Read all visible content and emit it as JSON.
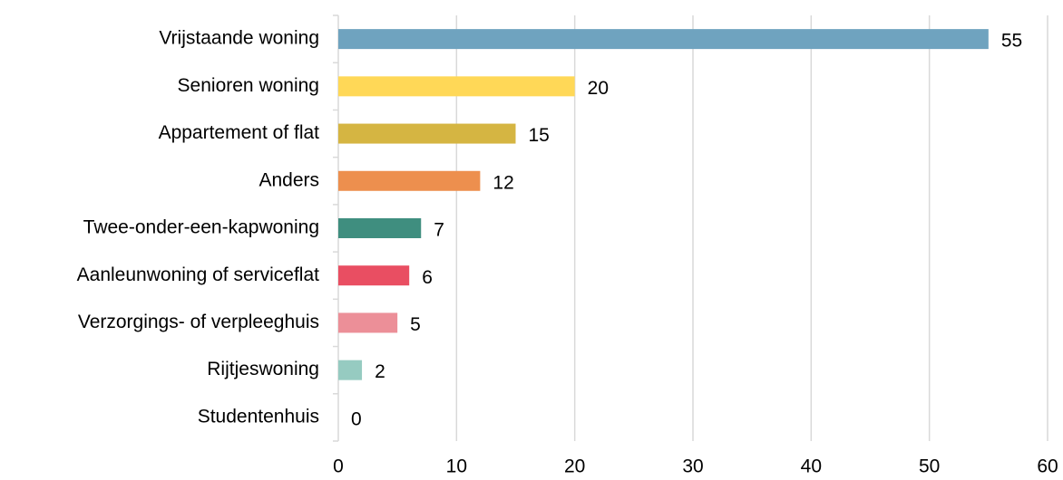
{
  "chart_data": {
    "type": "barh",
    "categories": [
      "Vrijstaande woning",
      "Senioren woning",
      "Appartement of flat",
      "Anders",
      "Twee-onder-een-kapwoning",
      "Aanleunwoning of serviceflat",
      "Verzorgings- of verpleeghuis",
      "Rijtjeswoning",
      "Studentenhuis"
    ],
    "values": [
      55,
      20,
      15,
      12,
      7,
      6,
      5,
      2,
      0
    ],
    "colors": [
      "#6fa3bf",
      "#ffd857",
      "#d5b542",
      "#ed8f4e",
      "#3f8e7f",
      "#e94e62",
      "#ec8f98",
      "#96cbc1",
      "#bbbbbb"
    ],
    "xlim": [
      0,
      60
    ],
    "xticks": [
      0,
      10,
      20,
      30,
      40,
      50,
      60
    ],
    "grid": true
  }
}
